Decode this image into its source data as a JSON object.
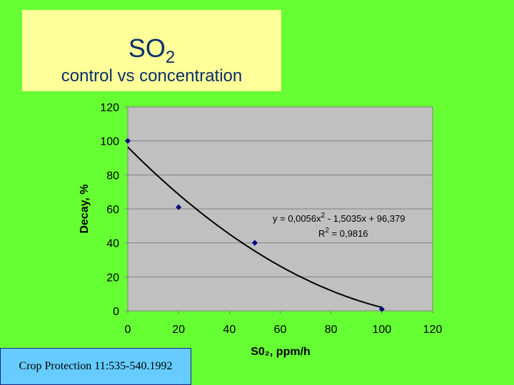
{
  "title": {
    "main": "SO",
    "main_sub": "2",
    "subtitle": "control vs concentration"
  },
  "citation": "Crop Protection 11:535-540.1992",
  "colors": {
    "background": "#66ff33",
    "title_box": "#ffff99",
    "title_text": "#0a2f6b",
    "plot_area": "#c0c0c0",
    "markers": "#000080",
    "trendline": "#000000",
    "citation_box": "#66ccff"
  },
  "chart_data": {
    "type": "scatter",
    "xlabel": "S0₂, ppm/h",
    "ylabel": "Decay, %",
    "xlim": [
      0,
      120
    ],
    "ylim": [
      0,
      120
    ],
    "xticks": [
      0,
      20,
      40,
      60,
      80,
      100,
      120
    ],
    "yticks": [
      0,
      20,
      40,
      60,
      80,
      100,
      120
    ],
    "grid": "horizontal",
    "legend": "none",
    "series": [
      {
        "x": [
          0,
          20,
          50,
          100
        ],
        "y": [
          100,
          61,
          40,
          1
        ],
        "marker": "diamond"
      }
    ],
    "trendline": {
      "type": "polynomial",
      "coefficients": {
        "a": 0.0056,
        "b": -1.5035,
        "c": 96.379
      },
      "x_range": [
        0,
        100
      ],
      "equation_label": "y = 0,0056x",
      "equation_label_rest": " - 1,5035x + 96,379",
      "r2_label": "R",
      "r2_label_rest": " = 0,9816",
      "sup": "2"
    }
  }
}
